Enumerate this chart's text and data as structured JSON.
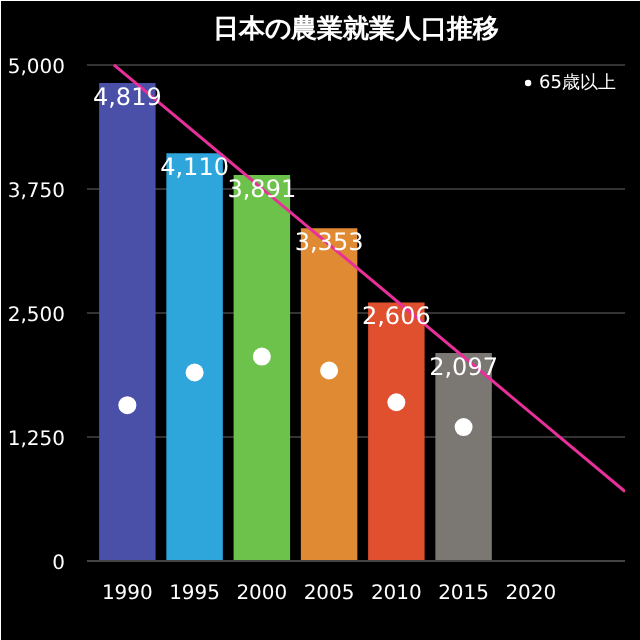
{
  "chart_data": {
    "type": "bar",
    "title": "日本の農業就業人口推移",
    "x": [
      1990,
      1995,
      2000,
      2005,
      2010,
      2015
    ],
    "xlim": [
      1987,
      2027
    ],
    "xticks": [
      1990,
      1995,
      2000,
      2005,
      2010,
      2015,
      2020
    ],
    "ylim": [
      0,
      5100
    ],
    "yticks": [
      0,
      {
        "value": 1250,
        "label": "1,250"
      },
      {
        "value": 2500,
        "label": "2,500"
      },
      {
        "value": 3750,
        "label": "3,750"
      },
      {
        "value": 5000,
        "label": "5,000"
      }
    ],
    "grid": "y",
    "legend": "top right",
    "series": [
      {
        "colors": [
          "#4a4fa8",
          "#2ea6dc",
          "#6cc24a",
          "#e08a33",
          "#e0502e",
          "#7b7772"
        ],
        "values": [
          4819,
          4110,
          3891,
          3353,
          2606,
          2097
        ],
        "value_labels": [
          "4,819",
          "4,110",
          "3,891",
          "3,353",
          "2,606",
          "2,097"
        ]
      },
      {
        "type": "scatter",
        "name": "65歳以上",
        "color": "#ffffff",
        "marker": "circle",
        "values": [
          1570,
          1900,
          2060,
          1920,
          1600,
          1350
        ]
      },
      {
        "type": "line",
        "color": "#e8309a",
        "x": [
          1989,
          2027
        ],
        "values": [
          5000,
          700
        ]
      }
    ]
  }
}
